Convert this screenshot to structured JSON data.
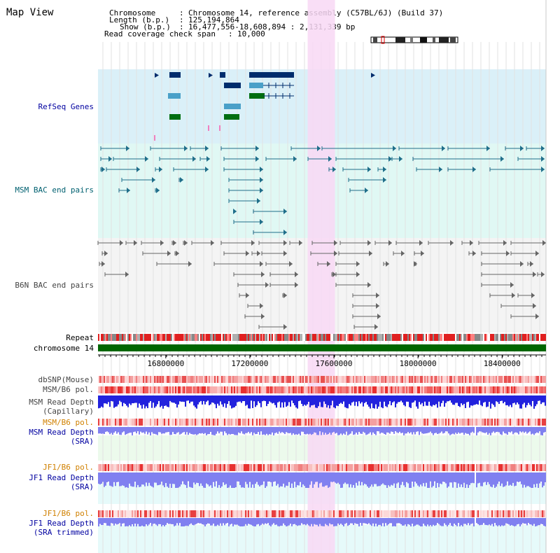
{
  "title": "Map View",
  "info": {
    "chromosome_key": "Chromosome",
    "chromosome_value": "Chromosome 14, reference assembly (C57BL/6J) (Build 37)",
    "length_key": "Length (b.p.)",
    "length_value": "125,194,864",
    "show_key": "Show (b.p.)",
    "show_value": "16,477,556-18,608,894 : 2,131,339 bp",
    "coverage_key": "Read coverage check span",
    "coverage_value": "10,000"
  },
  "view": {
    "start": 16477556,
    "end": 18608894,
    "highlight_start": 17475000,
    "highlight_end": 17605000
  },
  "tracks": {
    "refseq": "RefSeq Genes",
    "msm_bac": "MSM BAC end pairs",
    "b6n_bac": "B6N BAC end pairs",
    "repeat": "Repeat",
    "chromosome": "chromosome 14",
    "dbsnp": "dbSNP(Mouse)",
    "msm_b6_pol": "MSM/B6 pol.",
    "msm_depth_cap_1": "MSM Read Depth",
    "msm_depth_cap_2": "(Capillary)",
    "msm_b6_pol_sra": "MSM/B6 pol.",
    "msm_depth_sra_1": "MSM Read Depth",
    "msm_depth_sra_2": "(SRA)",
    "jf1_b6_pol": "JF1/B6 pol.",
    "jf1_depth_sra_1": "JF1 Read Depth",
    "jf1_depth_sra_2": "(SRA)",
    "jf1_b6_pol_trim": "JF1/B6 pol.",
    "jf1_depth_trim_1": "JF1 Read Depth",
    "jf1_depth_trim_2": "(SRA trimmed)"
  },
  "axis": {
    "ticks": [
      16800000,
      17200000,
      17600000,
      18000000,
      18400000
    ],
    "tick_labels": [
      "16800000",
      "17200000",
      "17600000",
      "18000000",
      "18400000"
    ]
  },
  "colors": {
    "highlight": "#f8d8f4",
    "refseq_bg": "#daf0f8",
    "bac_bg": "#e0f8f4",
    "chromosome": "#006600",
    "gene_navy": "#002c6c",
    "gene_blue": "#4aa0c8",
    "gene_green": "#006e10",
    "msm_feature": "#1f6e8a",
    "b6n_feature": "#666666",
    "depth_blue": "#2222dd",
    "depth_light": "#8080f0",
    "label_blue": "#0000a0",
    "label_teal": "#006070",
    "label_orange": "#d08000"
  }
}
